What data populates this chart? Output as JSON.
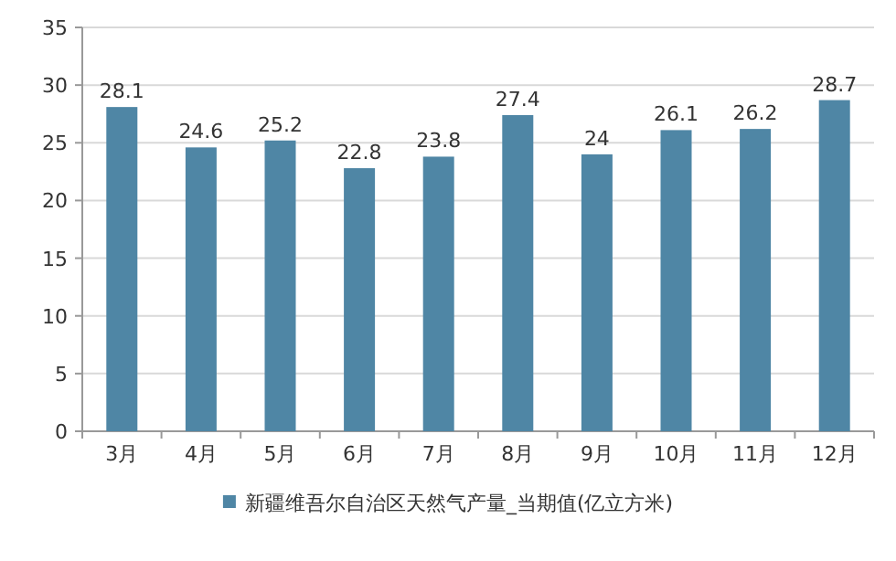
{
  "chart_data": {
    "type": "bar",
    "categories": [
      "3月",
      "4月",
      "5月",
      "6月",
      "7月",
      "8月",
      "9月",
      "10月",
      "11月",
      "12月"
    ],
    "series": [
      {
        "name": "新疆维吾尔自治区天然气产量_当期值(亿立方米)",
        "color": "#4f86a5",
        "values": [
          28.1,
          24.6,
          25.2,
          22.8,
          23.8,
          27.4,
          24,
          26.1,
          26.2,
          28.7
        ]
      }
    ],
    "ylim": [
      0,
      35
    ],
    "yticks": [
      0,
      5,
      10,
      15,
      20,
      25,
      30,
      35
    ],
    "grid": "y",
    "legend": "bottom",
    "data_labels": true
  }
}
